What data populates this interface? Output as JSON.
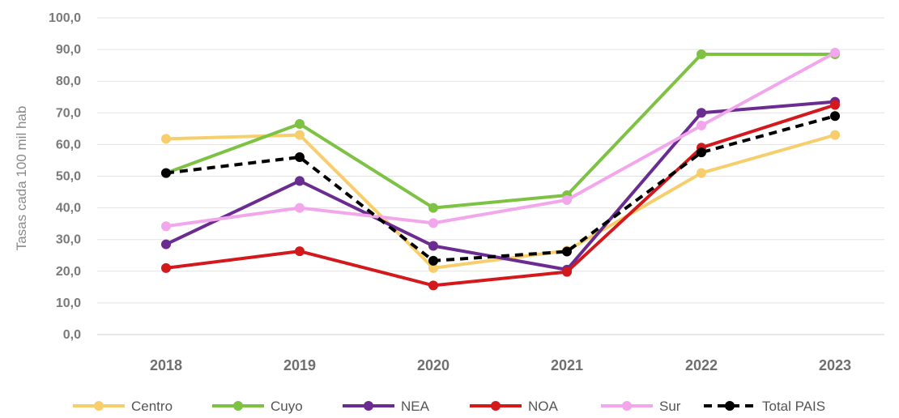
{
  "chart_data": {
    "type": "line",
    "ylabel": "Tasas cada 100 mil hab",
    "xlabel": "",
    "categories": [
      "2018",
      "2019",
      "2020",
      "2021",
      "2022",
      "2023"
    ],
    "ylim": [
      0,
      100
    ],
    "yticks": [
      "0,0",
      "10,0",
      "20,0",
      "30,0",
      "40,0",
      "50,0",
      "60,0",
      "70,0",
      "80,0",
      "90,0",
      "100,0"
    ],
    "grid": true,
    "legend_position": "bottom",
    "series": [
      {
        "name": "Centro",
        "color": "#F6CE6B",
        "dashed": false,
        "values": [
          61.8,
          63.0,
          21.0,
          26.5,
          51.0,
          63.0
        ]
      },
      {
        "name": "Cuyo",
        "color": "#7DC243",
        "dashed": false,
        "values": [
          51.0,
          66.5,
          40.0,
          44.0,
          88.5,
          88.5
        ]
      },
      {
        "name": "NEA",
        "color": "#6A2C91",
        "dashed": false,
        "values": [
          28.5,
          48.5,
          28.0,
          20.5,
          70.0,
          73.5
        ]
      },
      {
        "name": "NOA",
        "color": "#D3191C",
        "dashed": false,
        "values": [
          21.0,
          26.3,
          15.5,
          19.8,
          59.0,
          72.5
        ]
      },
      {
        "name": "Sur",
        "color": "#F2A6EC",
        "dashed": false,
        "values": [
          34.2,
          40.0,
          35.2,
          42.5,
          66.0,
          89.0
        ]
      },
      {
        "name": "Total PAIS",
        "color": "#000000",
        "dashed": true,
        "values": [
          51.0,
          56.0,
          23.3,
          26.2,
          57.5,
          69.0
        ]
      }
    ]
  }
}
